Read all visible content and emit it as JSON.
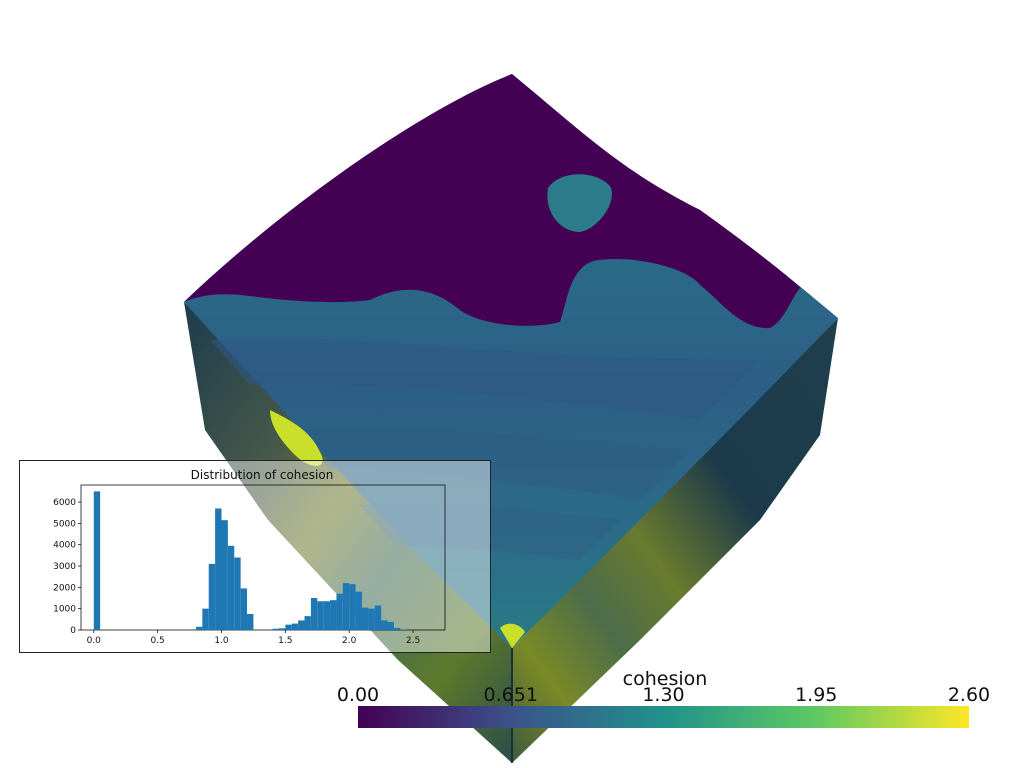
{
  "scalar_bar": {
    "title": "cohesion",
    "labels": [
      "0.00",
      "0.651",
      "1.30",
      "1.95",
      "2.60"
    ],
    "range": [
      0.0,
      2.6
    ],
    "colormap": "viridis",
    "colors": [
      "#440154",
      "#3b528b",
      "#21918c",
      "#5ec962",
      "#fde725"
    ]
  },
  "chart_data": {
    "type": "bar",
    "title": "Distribution of cohesion",
    "xlabel": "",
    "ylabel": "",
    "xlim": [
      -0.1,
      2.75
    ],
    "ylim": [
      0,
      6800
    ],
    "xticks": [
      "0.0",
      "0.5",
      "1.0",
      "1.5",
      "2.0",
      "2.5"
    ],
    "xtick_values": [
      0.0,
      0.5,
      1.0,
      1.5,
      2.0,
      2.5
    ],
    "yticks": [
      "0",
      "1000",
      "2000",
      "3000",
      "4000",
      "5000",
      "6000"
    ],
    "ytick_values": [
      0,
      1000,
      2000,
      3000,
      4000,
      5000,
      6000
    ],
    "bin_width": 0.05,
    "bin_starts": [
      0.0,
      0.8,
      0.85,
      0.9,
      0.95,
      1.0,
      1.05,
      1.1,
      1.15,
      1.2,
      1.4,
      1.45,
      1.5,
      1.55,
      1.6,
      1.65,
      1.7,
      1.75,
      1.8,
      1.85,
      1.9,
      1.95,
      2.0,
      2.05,
      2.1,
      2.15,
      2.2,
      2.25,
      2.3,
      2.35,
      2.4
    ],
    "values": [
      6500,
      150,
      1000,
      3100,
      5700,
      5150,
      3950,
      3400,
      1950,
      750,
      60,
      80,
      250,
      300,
      450,
      650,
      1500,
      1350,
      1350,
      1400,
      1700,
      2200,
      2150,
      1800,
      1050,
      1000,
      1150,
      450,
      380,
      100,
      30
    ],
    "bar_color": "#1f77b4"
  }
}
